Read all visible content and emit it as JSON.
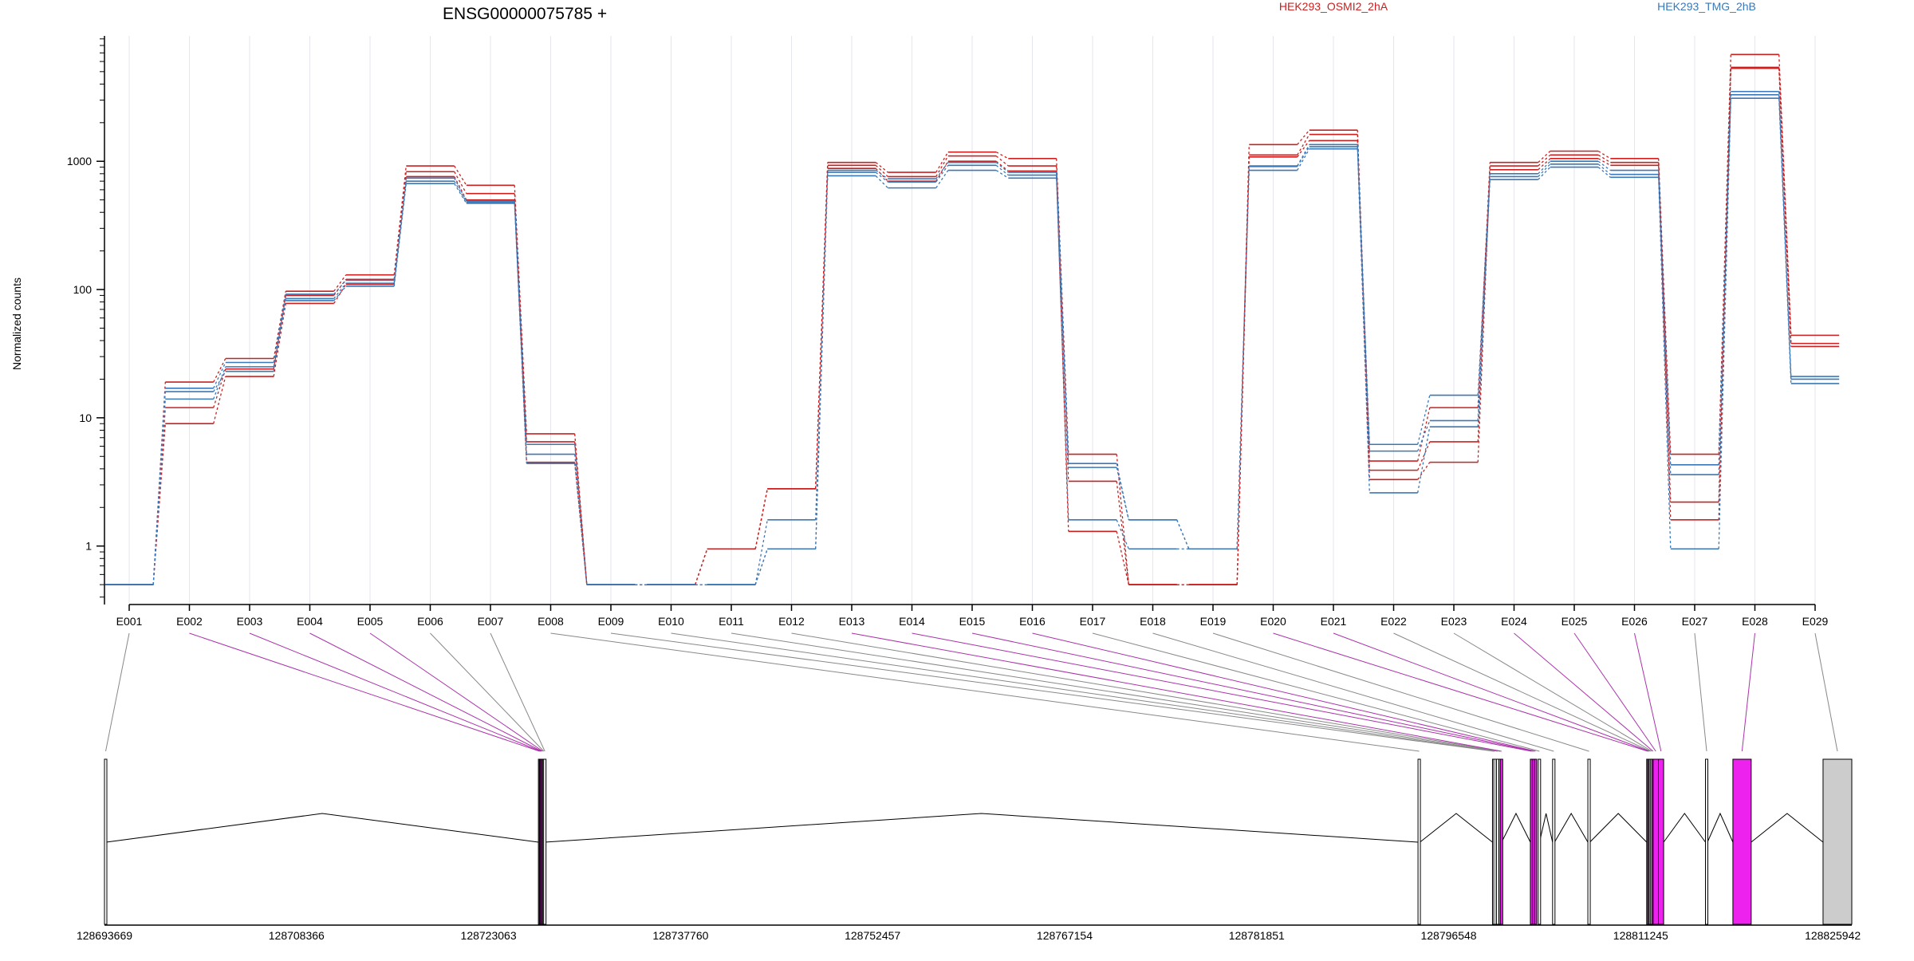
{
  "chart_data": {
    "type": "line",
    "title": "ENSG00000075785 +",
    "ylabel": "Normalized counts",
    "y_scale": "log",
    "ylim": [
      0.35,
      9500
    ],
    "y_ticks": [
      1,
      10,
      100,
      1000
    ],
    "y_tick_labels": [
      "1",
      "10",
      "100",
      "1000"
    ],
    "categories": [
      "E001",
      "E002",
      "E003",
      "E004",
      "E005",
      "E006",
      "E007",
      "E008",
      "E009",
      "E010",
      "E011",
      "E012",
      "E013",
      "E014",
      "E015",
      "E016",
      "E017",
      "E018",
      "E019",
      "E020",
      "E021",
      "E022",
      "E023",
      "E024",
      "E025",
      "E026",
      "E027",
      "E028",
      "E029"
    ],
    "legend_position": "top",
    "groups": [
      {
        "name": "HEK293_OSMI2_2hA",
        "color": "#cc2020"
      },
      {
        "name": "HEK293_TMG_2hB",
        "color": "#3a78b8"
      }
    ],
    "series": [
      {
        "group": 0,
        "values": [
          0.5,
          19,
          29,
          97,
          130,
          920,
          650,
          7.5,
          0.5,
          0.5,
          0.95,
          2.8,
          980,
          820,
          1180,
          1050,
          5.2,
          0.5,
          0.5,
          1350,
          1750,
          4.6,
          12,
          980,
          1200,
          1050,
          5.2,
          6800,
          44
        ]
      },
      {
        "group": 0,
        "values": [
          0.5,
          12,
          24,
          90,
          120,
          830,
          560,
          6.5,
          0.5,
          0.5,
          0.95,
          2.8,
          930,
          760,
          1100,
          920,
          3.2,
          0.5,
          0.5,
          1120,
          1620,
          3.9,
          6.5,
          920,
          1120,
          980,
          2.2,
          5400,
          38
        ]
      },
      {
        "group": 0,
        "values": [
          0.5,
          9,
          21,
          78,
          110,
          760,
          500,
          4.5,
          0.5,
          0.5,
          0.95,
          2.8,
          880,
          700,
          1000,
          840,
          1.3,
          0.5,
          0.5,
          1080,
          1450,
          3.3,
          4.5,
          860,
          1050,
          930,
          1.6,
          5300,
          36
        ]
      },
      {
        "group": 1,
        "values": [
          0.5,
          17,
          27,
          92,
          118,
          740,
          490,
          6.2,
          0.5,
          0.5,
          0.5,
          1.6,
          850,
          730,
          980,
          820,
          4.4,
          1.6,
          0.95,
          920,
          1350,
          6.2,
          15,
          800,
          1000,
          850,
          4.3,
          3500,
          21
        ]
      },
      {
        "group": 1,
        "values": [
          0.5,
          14,
          25,
          85,
          112,
          700,
          480,
          5.2,
          0.5,
          0.5,
          0.5,
          0.95,
          820,
          690,
          930,
          780,
          4.1,
          1.6,
          0.95,
          910,
          1300,
          5.5,
          9.5,
          760,
          950,
          790,
          3.6,
          3300,
          20
        ]
      },
      {
        "group": 1,
        "values": [
          0.5,
          16,
          23,
          82,
          106,
          670,
          470,
          4.4,
          0.5,
          0.5,
          0.5,
          0.95,
          770,
          620,
          850,
          740,
          1.6,
          0.95,
          0.95,
          850,
          1250,
          2.6,
          8.5,
          720,
          900,
          750,
          0.95,
          3100,
          18.5
        ]
      }
    ],
    "genomic_ticks": [
      "128693669",
      "128708366",
      "128723063",
      "128737760",
      "128752457",
      "128767154",
      "128781851",
      "128796548",
      "128811245",
      "128825942"
    ],
    "gene_range": [
      128693669,
      128827400
    ],
    "exon_bins": [
      {
        "id": "E001",
        "start": 128693669,
        "end": 128693800,
        "sig": false
      },
      {
        "id": "E002",
        "start": 128726880,
        "end": 128726960,
        "sig": true
      },
      {
        "id": "E003",
        "start": 128726960,
        "end": 128727040,
        "sig": true
      },
      {
        "id": "E004",
        "start": 128727040,
        "end": 128727120,
        "sig": true
      },
      {
        "id": "E005",
        "start": 128727120,
        "end": 128727200,
        "sig": true
      },
      {
        "id": "E006",
        "start": 128727200,
        "end": 128727280,
        "sig": false
      },
      {
        "id": "E007",
        "start": 128727280,
        "end": 128727360,
        "sig": false
      },
      {
        "id": "E008",
        "start": 128794200,
        "end": 128794350,
        "sig": false
      },
      {
        "id": "E009",
        "start": 128799900,
        "end": 128800000,
        "sig": false
      },
      {
        "id": "E010",
        "start": 128800000,
        "end": 128800100,
        "sig": false
      },
      {
        "id": "E011",
        "start": 128800200,
        "end": 128800300,
        "sig": false
      },
      {
        "id": "E012",
        "start": 128800400,
        "end": 128800500,
        "sig": false
      },
      {
        "id": "E013",
        "start": 128800500,
        "end": 128800600,
        "sig": true
      },
      {
        "id": "E014",
        "start": 128802800,
        "end": 128802900,
        "sig": true
      },
      {
        "id": "E015",
        "start": 128802950,
        "end": 128803050,
        "sig": true
      },
      {
        "id": "E016",
        "start": 128803100,
        "end": 128803200,
        "sig": true
      },
      {
        "id": "E017",
        "start": 128803400,
        "end": 128803500,
        "sig": false
      },
      {
        "id": "E018",
        "start": 128804500,
        "end": 128804650,
        "sig": false
      },
      {
        "id": "E019",
        "start": 128807200,
        "end": 128807350,
        "sig": false
      },
      {
        "id": "E020",
        "start": 128811700,
        "end": 128811800,
        "sig": true
      },
      {
        "id": "E021",
        "start": 128811800,
        "end": 128811900,
        "sig": true
      },
      {
        "id": "E022",
        "start": 128811900,
        "end": 128812000,
        "sig": false
      },
      {
        "id": "E023",
        "start": 128812000,
        "end": 128812100,
        "sig": false
      },
      {
        "id": "E024",
        "start": 128812100,
        "end": 128812200,
        "sig": true
      },
      {
        "id": "E025",
        "start": 128812200,
        "end": 128812600,
        "sig": true
      },
      {
        "id": "E026",
        "start": 128812600,
        "end": 128813000,
        "sig": true
      },
      {
        "id": "E027",
        "start": 128816200,
        "end": 128816350,
        "sig": false
      },
      {
        "id": "E028",
        "start": 128818300,
        "end": 128819700,
        "sig": true
      },
      {
        "id": "E029",
        "start": 128825200,
        "end": 128827400,
        "sig": false,
        "utr": true
      }
    ],
    "significant_color": "#ee22ee",
    "nonsignificant_color": "#ffffff",
    "utr_color": "#cccccc"
  }
}
